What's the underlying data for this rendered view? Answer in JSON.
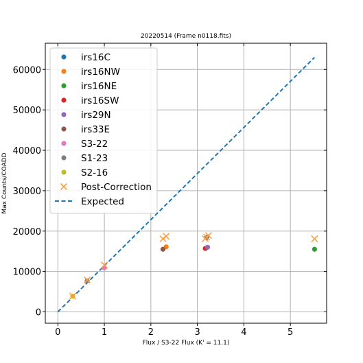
{
  "chart_data": {
    "type": "scatter",
    "title": "20220514 (Frame n0118.fits)",
    "xlabel": "Flux / S3-22 Flux (K' = 11.1)",
    "ylabel": "Max Counts/COADD",
    "xlim": [
      -0.27,
      5.78
    ],
    "ylim": [
      -2800,
      66500
    ],
    "xticks": [
      0,
      1,
      2,
      3,
      4,
      5
    ],
    "yticks": [
      0,
      10000,
      20000,
      30000,
      40000,
      50000,
      60000
    ],
    "grid": true,
    "legend_position": "top-left",
    "series": [
      {
        "name": "irs16C",
        "color": "#1f77b4",
        "marker": "circle",
        "points": [
          [
            3.2,
            18400
          ]
        ]
      },
      {
        "name": "irs16NW",
        "color": "#ff7f0e",
        "marker": "circle",
        "points": [
          [
            2.33,
            16100
          ]
        ]
      },
      {
        "name": "irs16NE",
        "color": "#2ca02c",
        "marker": "circle",
        "points": [
          [
            5.52,
            15500
          ]
        ]
      },
      {
        "name": "irs16SW",
        "color": "#d62728",
        "marker": "circle",
        "points": [
          [
            3.17,
            15700
          ]
        ]
      },
      {
        "name": "irs29N",
        "color": "#9467bd",
        "marker": "circle",
        "points": [
          [
            3.22,
            16000
          ]
        ]
      },
      {
        "name": "irs33E",
        "color": "#8c564b",
        "marker": "circle",
        "points": [
          [
            2.26,
            15500
          ]
        ]
      },
      {
        "name": "S3-22",
        "color": "#e377c2",
        "marker": "circle",
        "points": [
          [
            1.0,
            10900
          ]
        ]
      },
      {
        "name": "S1-23",
        "color": "#7f7f7f",
        "marker": "circle",
        "points": [
          [
            0.63,
            7700
          ]
        ]
      },
      {
        "name": "S2-16",
        "color": "#bcbd22",
        "marker": "circle",
        "points": [
          [
            0.32,
            3900
          ]
        ]
      },
      {
        "name": "Post-Correction",
        "color": "#ff9f40",
        "marker": "x",
        "points": [
          [
            3.2,
            18500
          ],
          [
            2.33,
            18700
          ],
          [
            5.52,
            18100
          ],
          [
            3.17,
            18100
          ],
          [
            3.24,
            18900
          ],
          [
            2.26,
            18100
          ],
          [
            1.0,
            11600
          ],
          [
            0.63,
            7900
          ],
          [
            0.32,
            3900
          ]
        ]
      },
      {
        "name": "Expected",
        "color": "#1f77b4",
        "marker": "dashed-line",
        "points": [
          [
            0,
            0
          ],
          [
            5.52,
            63000
          ]
        ]
      }
    ]
  }
}
